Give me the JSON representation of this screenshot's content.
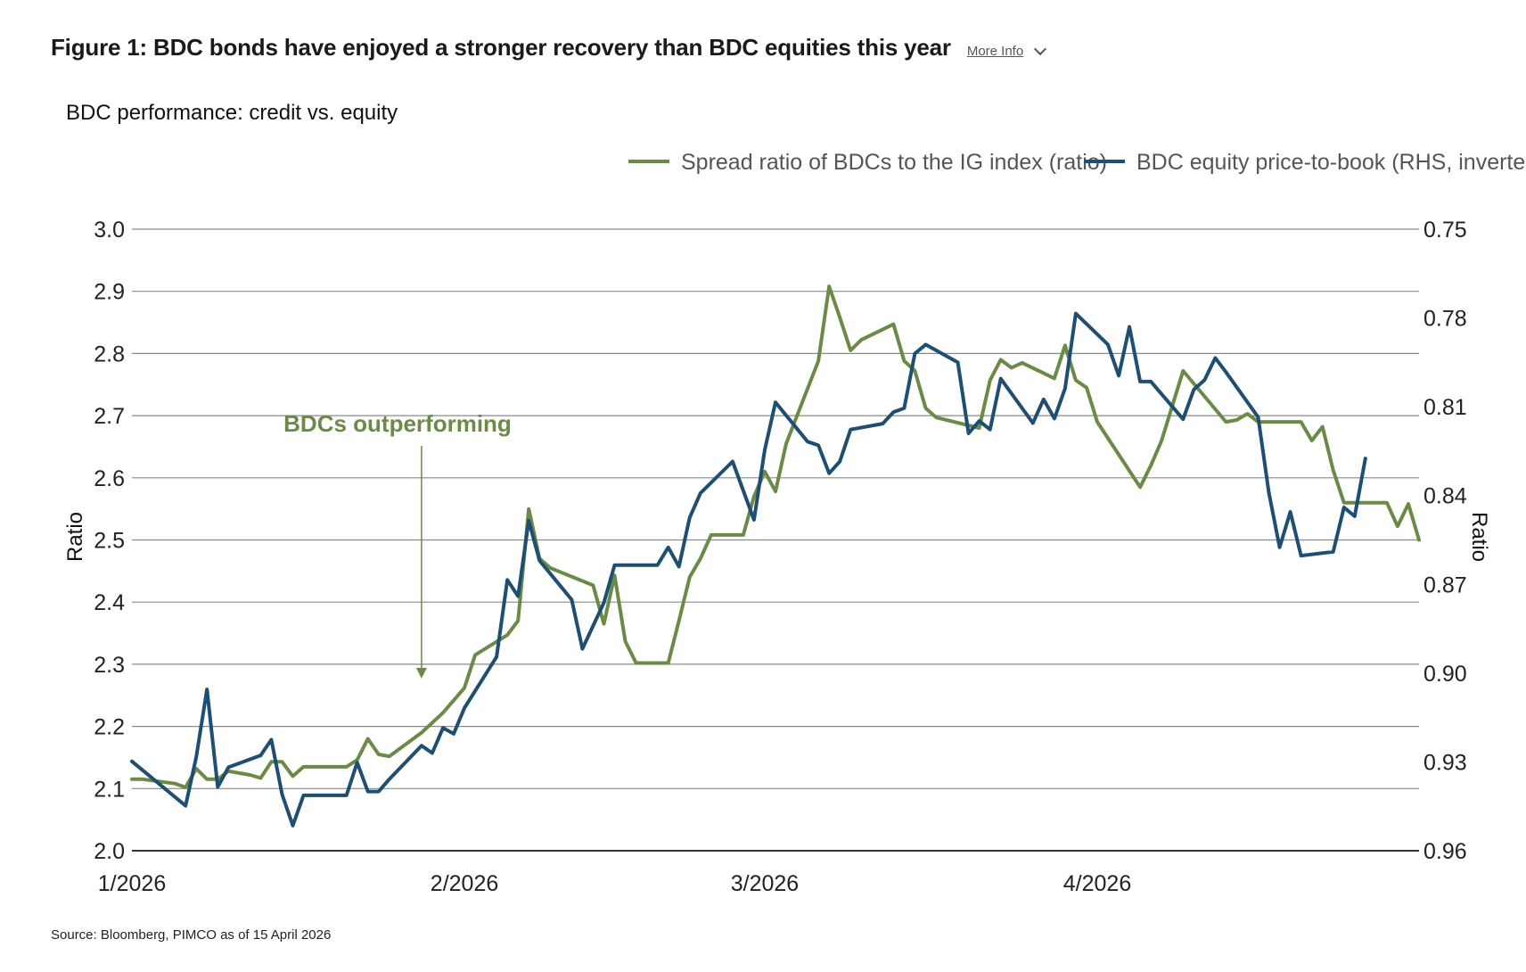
{
  "header": {
    "title": "Figure 1: BDC bonds have enjoyed a stronger recovery than BDC equities this year",
    "more_info": "More Info"
  },
  "footer": {
    "source": "Source: Bloomberg, PIMCO as of 15 April 2026"
  },
  "colors": {
    "green": "#6b8a47",
    "blue": "#1f4e73",
    "grid": "#8a8a8a",
    "axis": "#333333"
  },
  "chart_data": {
    "type": "line",
    "subtitle": "BDC performance: credit vs. equity",
    "ylabel_left": "Ratio",
    "ylabel_right": "Ratio",
    "ylim_left": [
      2.0,
      3.0
    ],
    "ylim_right": [
      0.96,
      0.75
    ],
    "right_axis_inverted": true,
    "yticks_left": [
      "2.0",
      "2.1",
      "2.2",
      "2.3",
      "2.4",
      "2.5",
      "2.6",
      "2.7",
      "2.8",
      "2.9",
      "3.0"
    ],
    "yticks_right": [
      "0.96",
      "0.93",
      "0.90",
      "0.87",
      "0.84",
      "0.81",
      "0.78",
      "0.75"
    ],
    "xticks": [
      "1/2026",
      "2/2026",
      "3/2026",
      "4/2026"
    ],
    "grid": true,
    "legend_position": "top-right",
    "annotation": {
      "text": "BDCs outperforming",
      "x": "2026-01-28",
      "arrow_to_y": 2.28
    },
    "series": [
      {
        "name": "Spread ratio of BDCs to the IG index (ratio)",
        "axis": "left",
        "color": "#6b8a47",
        "points": [
          [
            "2026-01-01",
            2.115
          ],
          [
            "2026-01-02",
            2.115
          ],
          [
            "2026-01-05",
            2.108
          ],
          [
            "2026-01-06",
            2.102
          ],
          [
            "2026-01-07",
            2.132
          ],
          [
            "2026-01-08",
            2.115
          ],
          [
            "2026-01-09",
            2.115
          ],
          [
            "2026-01-10",
            2.128
          ],
          [
            "2026-01-12",
            2.122
          ],
          [
            "2026-01-13",
            2.117
          ],
          [
            "2026-01-14",
            2.143
          ],
          [
            "2026-01-15",
            2.143
          ],
          [
            "2026-01-16",
            2.12
          ],
          [
            "2026-01-17",
            2.135
          ],
          [
            "2026-01-20",
            2.135
          ],
          [
            "2026-01-21",
            2.135
          ],
          [
            "2026-01-22",
            2.146
          ],
          [
            "2026-01-23",
            2.18
          ],
          [
            "2026-01-24",
            2.155
          ],
          [
            "2026-01-25",
            2.152
          ],
          [
            "2026-01-28",
            2.19
          ],
          [
            "2026-01-30",
            2.222
          ],
          [
            "2026-02-01",
            2.262
          ],
          [
            "2026-02-02",
            2.315
          ],
          [
            "2026-02-05",
            2.347
          ],
          [
            "2026-02-06",
            2.37
          ],
          [
            "2026-02-07",
            2.55
          ],
          [
            "2026-02-08",
            2.47
          ],
          [
            "2026-02-09",
            2.455
          ],
          [
            "2026-02-13",
            2.427
          ],
          [
            "2026-02-14",
            2.365
          ],
          [
            "2026-02-15",
            2.443
          ],
          [
            "2026-02-16",
            2.337
          ],
          [
            "2026-02-17",
            2.302
          ],
          [
            "2026-02-20",
            2.302
          ],
          [
            "2026-02-21",
            2.37
          ],
          [
            "2026-02-22",
            2.44
          ],
          [
            "2026-02-23",
            2.47
          ],
          [
            "2026-02-24",
            2.508
          ],
          [
            "2026-02-27",
            2.508
          ],
          [
            "2026-02-28",
            2.57
          ],
          [
            "2026-03-01",
            2.61
          ],
          [
            "2026-03-02",
            2.578
          ],
          [
            "2026-03-03",
            2.655
          ],
          [
            "2026-03-06",
            2.788
          ],
          [
            "2026-03-07",
            2.908
          ],
          [
            "2026-03-08",
            2.858
          ],
          [
            "2026-03-09",
            2.805
          ],
          [
            "2026-03-10",
            2.822
          ],
          [
            "2026-03-13",
            2.847
          ],
          [
            "2026-03-14",
            2.788
          ],
          [
            "2026-03-15",
            2.772
          ],
          [
            "2026-03-16",
            2.712
          ],
          [
            "2026-03-17",
            2.697
          ],
          [
            "2026-03-21",
            2.68
          ],
          [
            "2026-03-22",
            2.757
          ],
          [
            "2026-03-23",
            2.79
          ],
          [
            "2026-03-24",
            2.777
          ],
          [
            "2026-03-25",
            2.785
          ],
          [
            "2026-03-28",
            2.76
          ],
          [
            "2026-03-29",
            2.813
          ],
          [
            "2026-03-30",
            2.757
          ],
          [
            "2026-03-31",
            2.745
          ],
          [
            "2026-04-01",
            2.69
          ],
          [
            "2026-04-05",
            2.585
          ],
          [
            "2026-04-06",
            2.62
          ],
          [
            "2026-04-07",
            2.66
          ],
          [
            "2026-04-09",
            2.772
          ],
          [
            "2026-04-13",
            2.69
          ],
          [
            "2026-04-14",
            2.693
          ],
          [
            "2026-04-15",
            2.703
          ],
          [
            "2026-04-16",
            2.69
          ],
          [
            "2026-04-19",
            2.69
          ],
          [
            "2026-04-20",
            2.69
          ],
          [
            "2026-04-21",
            2.66
          ],
          [
            "2026-04-22",
            2.682
          ],
          [
            "2026-04-23",
            2.612
          ],
          [
            "2026-04-24",
            2.56
          ],
          [
            "2026-04-27",
            2.56
          ],
          [
            "2026-04-28",
            2.56
          ],
          [
            "2026-04-29",
            2.522
          ],
          [
            "2026-04-30",
            2.558
          ],
          [
            "2026-05-01",
            2.5
          ]
        ]
      },
      {
        "name": "BDC equity price-to-book (RHS, inverted)",
        "axis": "right",
        "color": "#1f4e73",
        "points": [
          [
            "2026-01-01",
            0.9298
          ],
          [
            "2026-01-02",
            0.9328
          ],
          [
            "2026-01-05",
            0.9418
          ],
          [
            "2026-01-06",
            0.9448
          ],
          [
            "2026-01-07",
            0.9283
          ],
          [
            "2026-01-08",
            0.9055
          ],
          [
            "2026-01-09",
            0.9385
          ],
          [
            "2026-01-10",
            0.9318
          ],
          [
            "2026-01-13",
            0.9278
          ],
          [
            "2026-01-14",
            0.9225
          ],
          [
            "2026-01-15",
            0.941
          ],
          [
            "2026-01-16",
            0.9515
          ],
          [
            "2026-01-17",
            0.9413
          ],
          [
            "2026-01-21",
            0.9413
          ],
          [
            "2026-01-22",
            0.9302
          ],
          [
            "2026-01-23",
            0.94
          ],
          [
            "2026-01-24",
            0.94
          ],
          [
            "2026-01-25",
            0.9358
          ],
          [
            "2026-01-28",
            0.9245
          ],
          [
            "2026-01-29",
            0.927
          ],
          [
            "2026-01-30",
            0.9185
          ],
          [
            "2026-01-31",
            0.9205
          ],
          [
            "2026-02-01",
            0.9118
          ],
          [
            "2026-02-04",
            0.8945
          ],
          [
            "2026-02-05",
            0.8685
          ],
          [
            "2026-02-06",
            0.874
          ],
          [
            "2026-02-07",
            0.8485
          ],
          [
            "2026-02-08",
            0.862
          ],
          [
            "2026-02-11",
            0.8752
          ],
          [
            "2026-02-12",
            0.8918
          ],
          [
            "2026-02-14",
            0.8762
          ],
          [
            "2026-02-15",
            0.8635
          ],
          [
            "2026-02-19",
            0.8635
          ],
          [
            "2026-02-20",
            0.8575
          ],
          [
            "2026-02-21",
            0.864
          ],
          [
            "2026-02-22",
            0.8475
          ],
          [
            "2026-02-23",
            0.8392
          ],
          [
            "2026-02-26",
            0.8285
          ],
          [
            "2026-02-28",
            0.8482
          ],
          [
            "2026-03-01",
            0.8245
          ],
          [
            "2026-03-02",
            0.8085
          ],
          [
            "2026-03-05",
            0.8218
          ],
          [
            "2026-03-06",
            0.823
          ],
          [
            "2026-03-07",
            0.8325
          ],
          [
            "2026-03-08",
            0.8285
          ],
          [
            "2026-03-09",
            0.8177
          ],
          [
            "2026-03-12",
            0.8157
          ],
          [
            "2026-03-13",
            0.8118
          ],
          [
            "2026-03-14",
            0.8105
          ],
          [
            "2026-03-15",
            0.792
          ],
          [
            "2026-03-16",
            0.789
          ],
          [
            "2026-03-19",
            0.795
          ],
          [
            "2026-03-20",
            0.819
          ],
          [
            "2026-03-21",
            0.8148
          ],
          [
            "2026-03-22",
            0.8177
          ],
          [
            "2026-03-23",
            0.8005
          ],
          [
            "2026-03-26",
            0.8155
          ],
          [
            "2026-03-27",
            0.8075
          ],
          [
            "2026-03-28",
            0.814
          ],
          [
            "2026-03-29",
            0.8038
          ],
          [
            "2026-03-30",
            0.7785
          ],
          [
            "2026-04-02",
            0.789
          ],
          [
            "2026-04-03",
            0.7995
          ],
          [
            "2026-04-04",
            0.783
          ],
          [
            "2026-04-05",
            0.8015
          ],
          [
            "2026-04-06",
            0.8015
          ],
          [
            "2026-04-09",
            0.8142
          ],
          [
            "2026-04-10",
            0.8042
          ],
          [
            "2026-04-11",
            0.801
          ],
          [
            "2026-04-12",
            0.7935
          ],
          [
            "2026-04-13",
            0.7983
          ],
          [
            "2026-04-16",
            0.8135
          ],
          [
            "2026-04-17",
            0.839
          ],
          [
            "2026-04-18",
            0.8575
          ],
          [
            "2026-04-19",
            0.8455
          ],
          [
            "2026-04-20",
            0.8603
          ],
          [
            "2026-04-23",
            0.859
          ],
          [
            "2026-04-24",
            0.844
          ],
          [
            "2026-04-25",
            0.847
          ],
          [
            "2026-04-26",
            0.8275
          ]
        ]
      }
    ]
  }
}
